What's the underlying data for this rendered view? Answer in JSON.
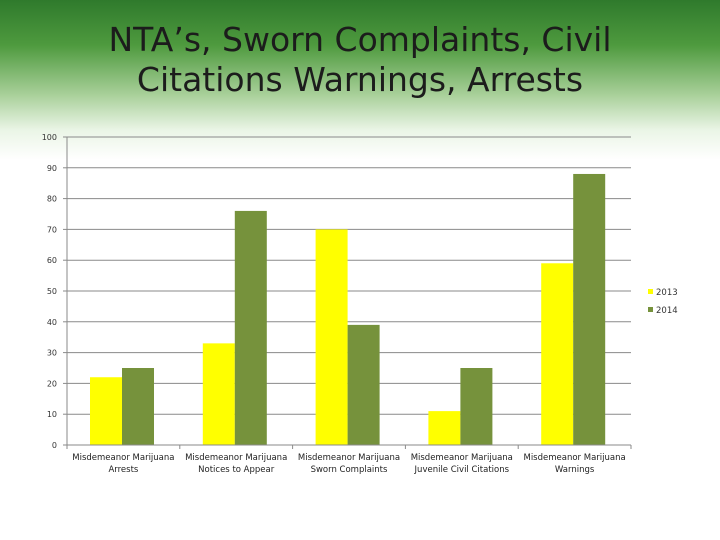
{
  "chart_data": {
    "type": "bar",
    "title_lines": [
      "NTA’s, Sworn Complaints, Civil",
      "Citations Warnings, Arrests"
    ],
    "categories": [
      [
        "Misdemeanor Marijuana",
        "Arrests"
      ],
      [
        "Misdemeanor Marijuana",
        "Notices to Appear"
      ],
      [
        "Misdemeanor Marijuana",
        "Sworn Complaints"
      ],
      [
        "Misdemeanor Marijuana",
        "Juvenile Civil Citations"
      ],
      [
        "Misdemeanor Marijuana",
        "Warnings"
      ]
    ],
    "series": [
      {
        "name": "2013",
        "color": "#ffff00",
        "values": [
          22,
          33,
          70,
          11,
          59
        ]
      },
      {
        "name": "2014",
        "color": "#76923c",
        "values": [
          25,
          76,
          39,
          25,
          88
        ]
      }
    ],
    "ylim": [
      0,
      100
    ],
    "yticks": [
      0,
      10,
      20,
      30,
      40,
      50,
      60,
      70,
      80,
      90,
      100
    ],
    "grid": true,
    "legend": "right"
  }
}
